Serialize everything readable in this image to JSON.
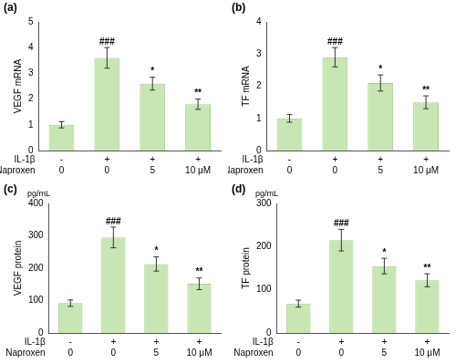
{
  "chart_data": [
    {
      "type": "bar",
      "title": "(a)",
      "y_label": "VEGF mRNA",
      "category_rows": [
        "IL-1β",
        "Naproxen"
      ],
      "categories": [
        [
          "-",
          "0"
        ],
        [
          "+",
          "0"
        ],
        [
          "+",
          "5"
        ],
        [
          "+",
          "10 μM"
        ]
      ],
      "values": [
        1.0,
        3.6,
        2.6,
        1.8
      ],
      "errors": [
        0.12,
        0.4,
        0.25,
        0.2
      ],
      "significance": [
        null,
        "###",
        "*",
        "**"
      ],
      "color": "#c8e6b4",
      "ylim": [
        0,
        5
      ],
      "yticks": [
        0,
        1,
        2,
        3,
        4,
        5
      ],
      "grid": false
    },
    {
      "type": "bar",
      "title": "(b)",
      "y_label": "TF mRNA",
      "category_rows": [
        "IL-1β",
        "Naproxen"
      ],
      "categories": [
        [
          "-",
          "0"
        ],
        [
          "+",
          "0"
        ],
        [
          "+",
          "5"
        ],
        [
          "+",
          "10 μM"
        ]
      ],
      "values": [
        1.0,
        2.9,
        2.1,
        1.5
      ],
      "errors": [
        0.12,
        0.3,
        0.25,
        0.2
      ],
      "significance": [
        null,
        "###",
        "*",
        "**"
      ],
      "color": "#c8e6b4",
      "ylim": [
        0,
        4
      ],
      "yticks": [
        0,
        1,
        2,
        3,
        4
      ],
      "grid": false
    },
    {
      "type": "bar",
      "title": "(c)",
      "y_label": "VEGF protein",
      "y_unit": "pg/mL",
      "category_rows": [
        "IL-1β",
        "Naproxen"
      ],
      "categories": [
        [
          "-",
          "0"
        ],
        [
          "+",
          "0"
        ],
        [
          "+",
          "5"
        ],
        [
          "+",
          "10 μM"
        ]
      ],
      "values": [
        92,
        295,
        213,
        152
      ],
      "errors": [
        10,
        32,
        22,
        18
      ],
      "significance": [
        null,
        "###",
        "*",
        "**"
      ],
      "color": "#c8e6b4",
      "ylim": [
        0,
        400
      ],
      "yticks": [
        0,
        100,
        200,
        300,
        400
      ],
      "grid": false
    },
    {
      "type": "bar",
      "title": "(d)",
      "y_label": "TF protein",
      "y_unit": "pg/mL",
      "category_rows": [
        "IL-1β",
        "Naproxen"
      ],
      "categories": [
        [
          "-",
          "0"
        ],
        [
          "+",
          "0"
        ],
        [
          "+",
          "5"
        ],
        [
          "+",
          "10 μM"
        ]
      ],
      "values": [
        68,
        215,
        155,
        122
      ],
      "errors": [
        8,
        25,
        18,
        15
      ],
      "significance": [
        null,
        "###",
        "*",
        "**"
      ],
      "color": "#c8e6b4",
      "ylim": [
        0,
        300
      ],
      "yticks": [
        0,
        100,
        200,
        300
      ],
      "grid": false
    }
  ]
}
